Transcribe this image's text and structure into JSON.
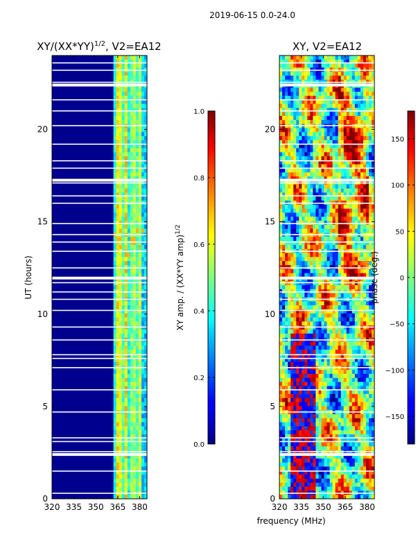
{
  "suptitle": "2019-06-15 0.0-24.0",
  "shared_xlabel": "frequency (MHz)",
  "chart_data": [
    {
      "type": "heatmap",
      "title_main": "XY/(XX*YY)",
      "title_exp": "1/2",
      "title_tail": ", V2=EA12",
      "ylabel": "UT (hours)",
      "xlim": [
        320,
        385
      ],
      "ylim": [
        0,
        24
      ],
      "xticks": [
        320,
        335,
        350,
        365,
        380
      ],
      "yticks": [
        0,
        5,
        10,
        15,
        20
      ],
      "colorbar": {
        "label_main": "XY amp. / (XX*YY amp)",
        "label_exp": "1/2",
        "range": [
          0.0,
          1.0
        ],
        "ticks": [
          "0.0",
          "0.2",
          "0.4",
          "0.6",
          "0.8",
          "1.0"
        ],
        "tick_values": [
          0.0,
          0.2,
          0.4,
          0.6,
          0.8,
          1.0
        ]
      }
    },
    {
      "type": "heatmap",
      "title_main": "XY, V2=EA12",
      "ylabel": "",
      "xlim": [
        320,
        385
      ],
      "ylim": [
        0,
        24
      ],
      "xticks": [
        320,
        335,
        350,
        365,
        380
      ],
      "yticks": [
        0,
        5,
        10,
        15,
        20
      ],
      "colorbar": {
        "label_main": "phase (deg.)",
        "range": [
          -180,
          180
        ],
        "ticks": [
          "−150",
          "−100",
          "−50",
          "0",
          "50",
          "100",
          "150"
        ],
        "tick_values": [
          -150,
          -100,
          -50,
          0,
          50,
          100,
          150
        ]
      }
    }
  ]
}
